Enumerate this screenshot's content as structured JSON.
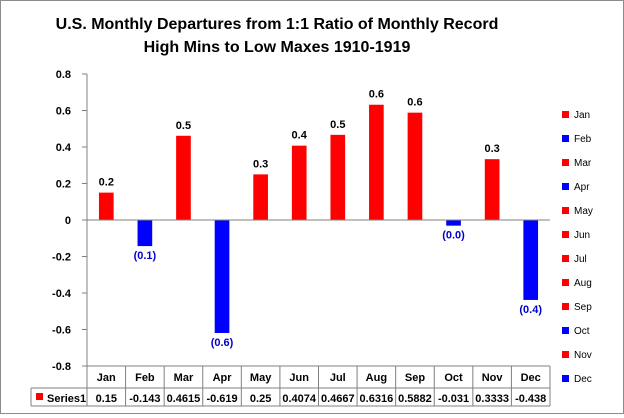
{
  "chart_data": {
    "type": "bar",
    "title": "U.S. Monthly Departures from 1:1 Ratio of Monthly Record High Mins to Low Maxes 1910-1919",
    "title_lines": [
      "U.S. Monthly Departures from 1:1 Ratio of Monthly Record",
      "High Mins to Low Maxes 1910-1919"
    ],
    "xlabel": "",
    "ylabel": "",
    "ylim": [
      -0.8,
      0.8
    ],
    "yticks": [
      0.8,
      0.6,
      0.4,
      0.2,
      0,
      -0.2,
      -0.4,
      -0.6,
      -0.8
    ],
    "ytick_labels": [
      "0.8",
      "0.6",
      "0.4",
      "0.2",
      "0",
      "-0.2",
      "-0.4",
      "-0.6",
      "-0.8"
    ],
    "grid": false,
    "legend_position": "right",
    "categories": [
      "Jan",
      "Feb",
      "Mar",
      "Apr",
      "May",
      "Jun",
      "Jul",
      "Aug",
      "Sep",
      "Oct",
      "Nov",
      "Dec"
    ],
    "series": [
      {
        "name": "Series1",
        "values": [
          0.15,
          -0.143,
          0.4615,
          -0.619,
          0.25,
          0.4074,
          0.4667,
          0.6316,
          0.5882,
          -0.031,
          0.3333,
          -0.438
        ],
        "table_values": [
          "0.15",
          "-0.143",
          "0.4615",
          "-0.619",
          "0.25",
          "0.4074",
          "0.4667",
          "0.6316",
          "0.5882",
          "-0.031",
          "0.3333",
          "-0.438"
        ],
        "data_labels": [
          "0.2",
          "(0.1)",
          "0.5",
          "(0.6)",
          "0.3",
          "0.4",
          "0.5",
          "0.6",
          "0.6",
          "(0.0)",
          "0.3",
          "(0.4)"
        ]
      }
    ],
    "colors": {
      "positive": "#ff0000",
      "negative": "#0000ff",
      "label_positive": "#000000",
      "label_negative": "#0000cc"
    },
    "legend_entries": [
      "Jan",
      "Feb",
      "Mar",
      "Apr",
      "May",
      "Jun",
      "Jul",
      "Aug",
      "Sep",
      "Oct",
      "Nov",
      "Dec"
    ],
    "data_table_legend": "Series1"
  }
}
